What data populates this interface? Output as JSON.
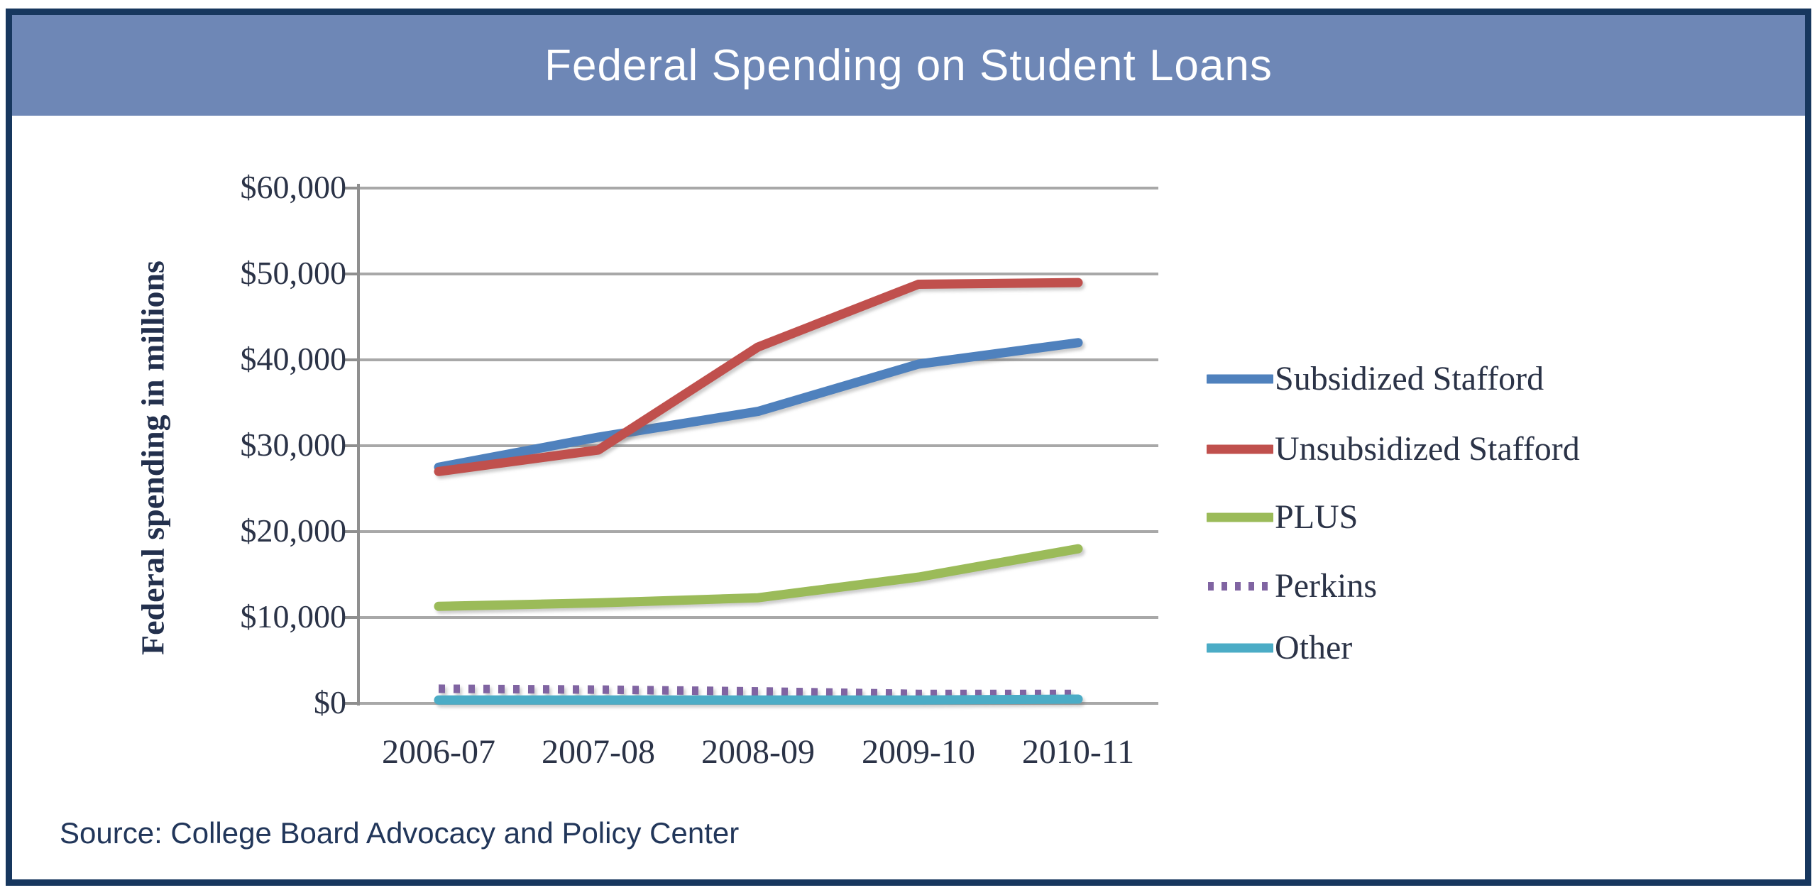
{
  "header": {
    "title": "Federal Spending on Student Loans",
    "banner_color": "#6E87B6",
    "frame_color": "#17375E"
  },
  "source": {
    "label": "Source: College Board Advocacy and Policy Center"
  },
  "chart_data": {
    "type": "line",
    "title": "Federal Spending on Student Loans",
    "categories": [
      "2006-07",
      "2007-08",
      "2008-09",
      "2009-10",
      "2010-11"
    ],
    "series": [
      {
        "name": "Subsidized Stafford",
        "color": "#4F81BD",
        "style": "solid",
        "values": [
          27500,
          31000,
          34000,
          39500,
          42000
        ]
      },
      {
        "name": "Unsubsidized Stafford",
        "color": "#C0504D",
        "style": "solid",
        "values": [
          27000,
          29500,
          41500,
          48800,
          49000
        ]
      },
      {
        "name": "PLUS",
        "color": "#9BBB59",
        "style": "solid",
        "values": [
          11300,
          11700,
          12300,
          14700,
          18000
        ]
      },
      {
        "name": "Perkins",
        "color": "#8064A2",
        "style": "dotted",
        "values": [
          1700,
          1600,
          1400,
          1100,
          1100
        ]
      },
      {
        "name": "Other",
        "color": "#4BACC6",
        "style": "solid",
        "values": [
          400,
          400,
          400,
          400,
          500
        ]
      }
    ],
    "xlabel": "",
    "ylabel": "Federal spending in millions",
    "yticks": [
      "$60,000",
      "$50,000",
      "$40,000",
      "$30,000",
      "$20,000",
      "$10,000",
      "$0"
    ],
    "ytick_values": [
      60000,
      50000,
      40000,
      30000,
      20000,
      10000,
      0
    ],
    "ylim": [
      0,
      60000
    ],
    "grid": true,
    "gridline_color": "#A8A8A8",
    "axis_color": "#8F8F8F",
    "legend_position": "right"
  }
}
